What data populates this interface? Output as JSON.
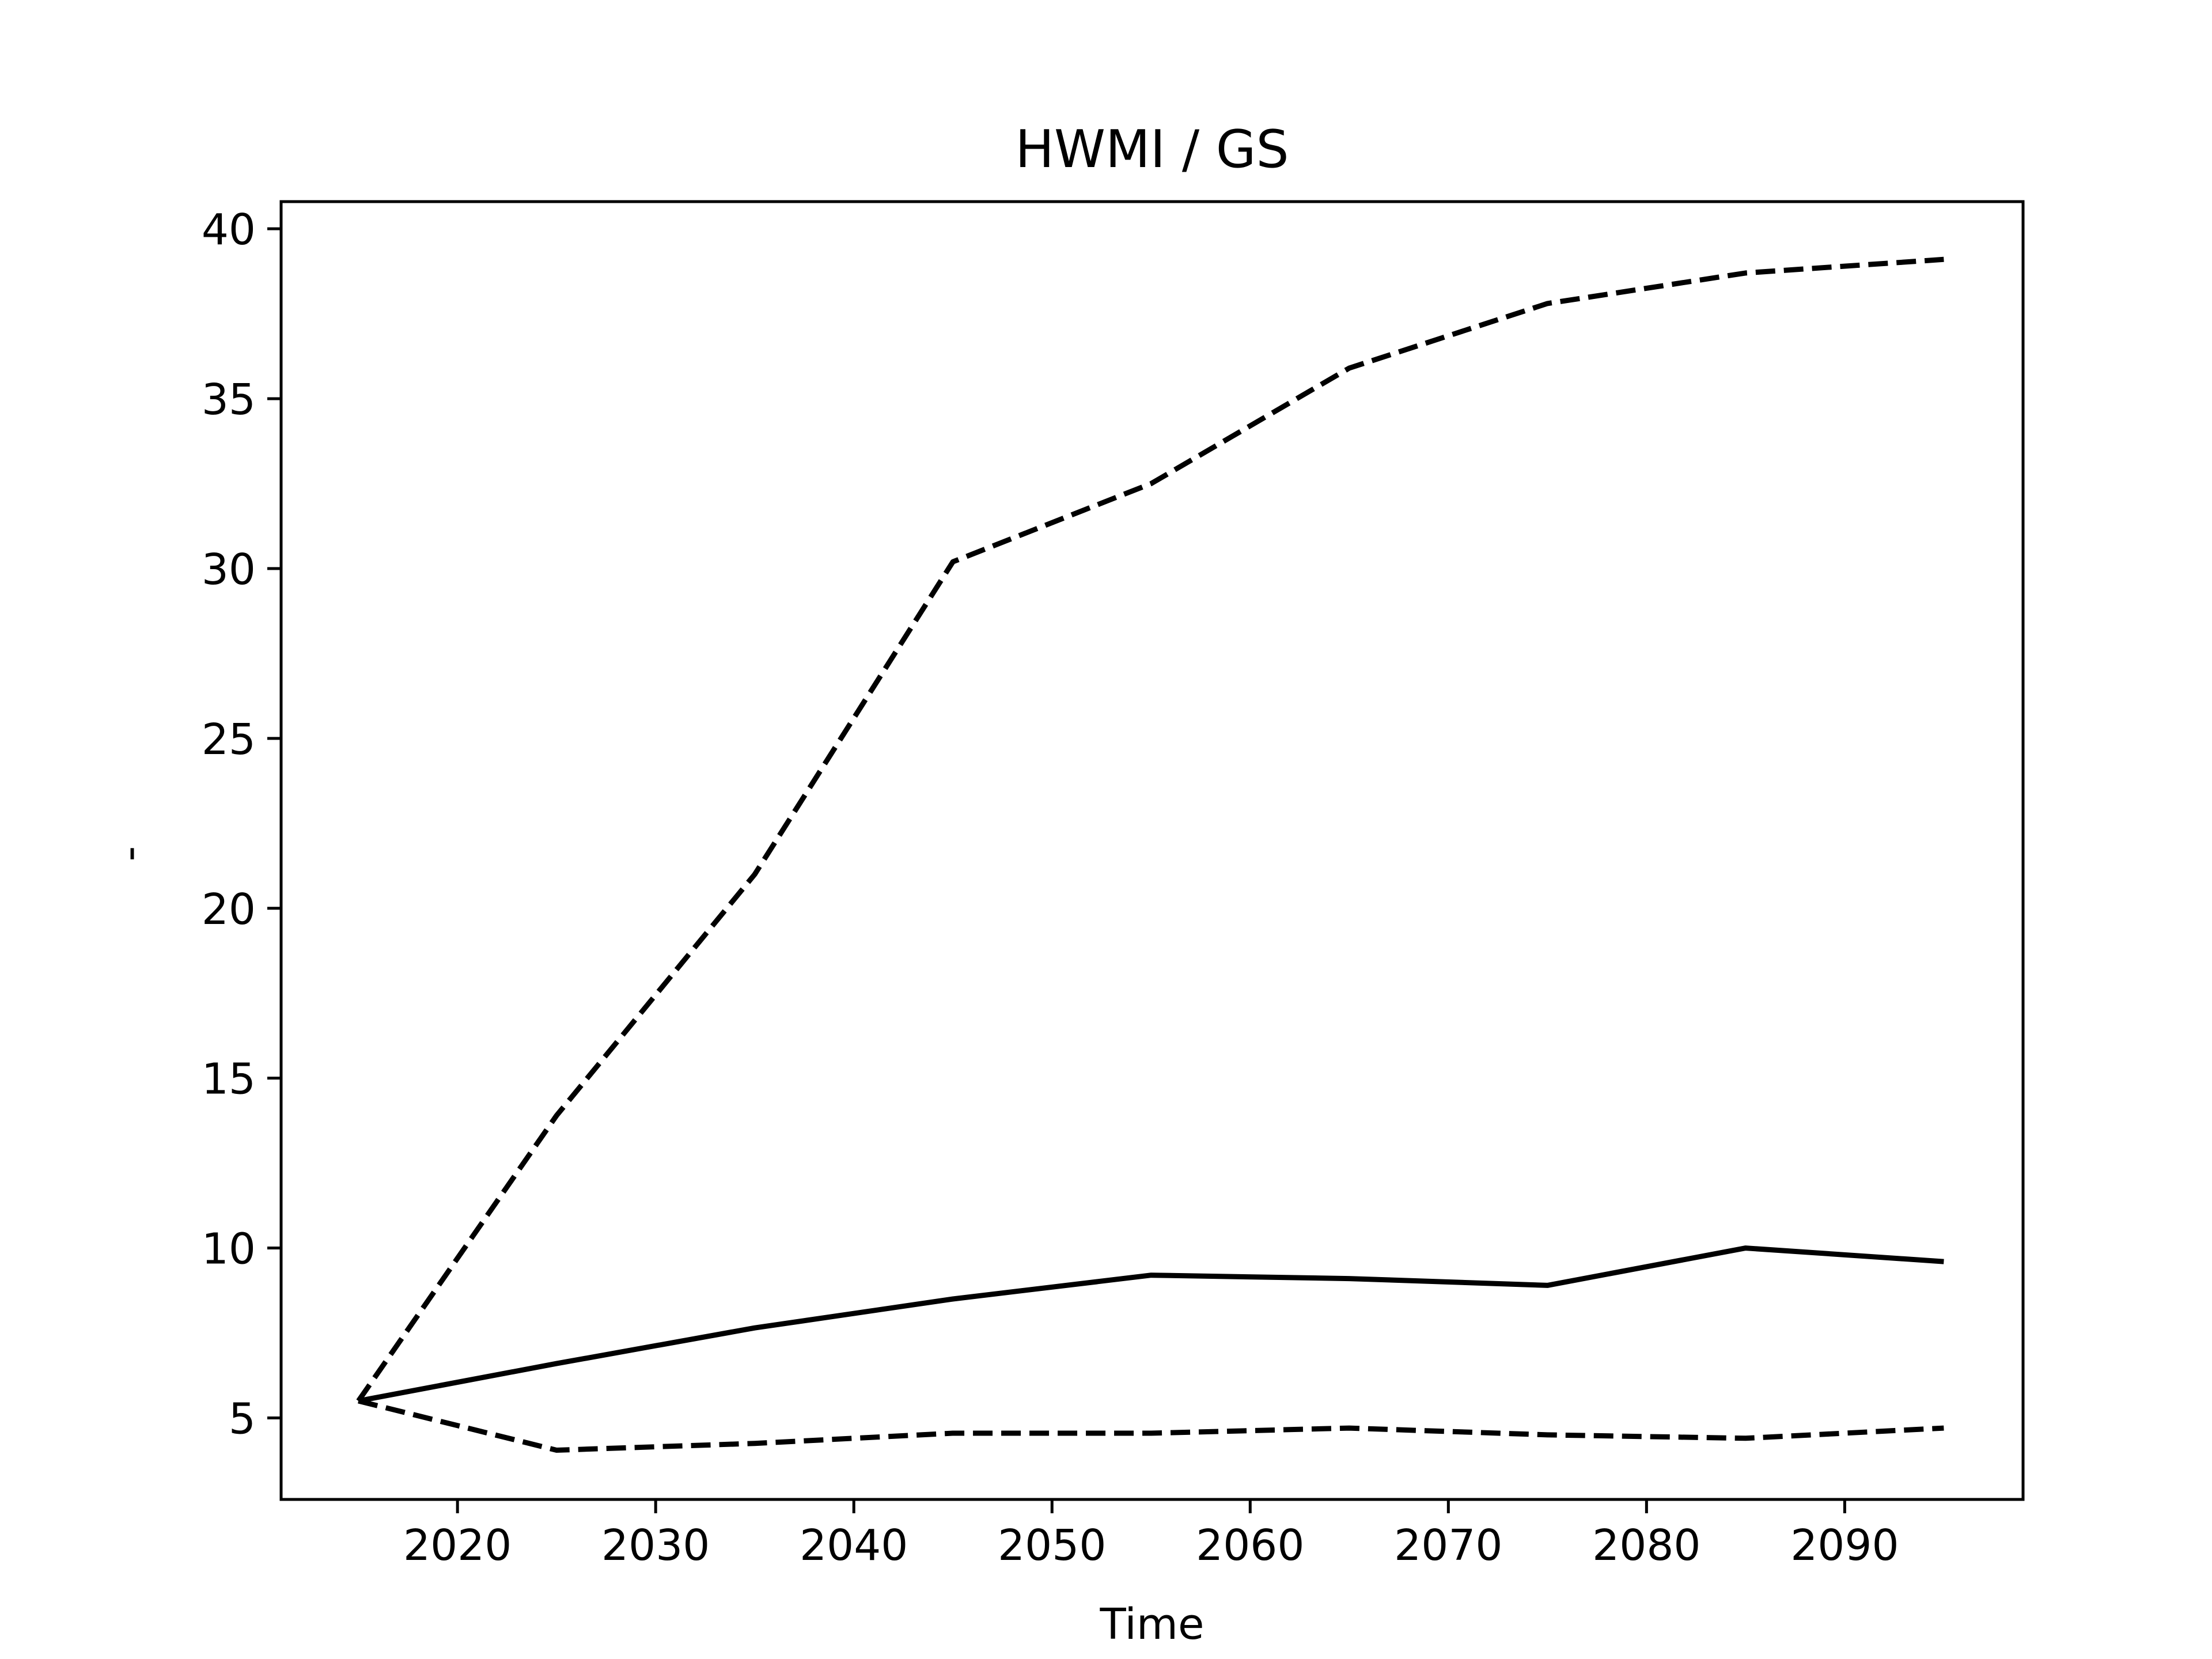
{
  "chart_data": {
    "type": "line",
    "title": "HWMI / GS",
    "xlabel": "Time",
    "ylabel": "-",
    "x": [
      2015,
      2025,
      2035,
      2045,
      2055,
      2065,
      2075,
      2085,
      2095
    ],
    "xlim": [
      2011.1,
      2099.0
    ],
    "ylim": [
      2.6,
      40.8
    ],
    "xticks": [
      2020,
      2030,
      2040,
      2050,
      2060,
      2070,
      2080,
      2090
    ],
    "yticks": [
      5,
      10,
      15,
      20,
      25,
      30,
      35,
      40
    ],
    "grid": false,
    "series": [
      {
        "style": "solid",
        "color": "#000000",
        "values": [
          5.5,
          6.6,
          7.65,
          8.5,
          9.2,
          9.1,
          8.9,
          10.0,
          9.6
        ]
      },
      {
        "style": "dashed",
        "color": "#000000",
        "values": [
          5.5,
          13.9,
          21.0,
          30.2,
          32.5,
          35.9,
          37.8,
          38.7,
          39.1
        ]
      },
      {
        "style": "dashed",
        "color": "#000000",
        "values": [
          5.5,
          4.05,
          4.25,
          4.55,
          4.55,
          4.7,
          4.5,
          4.4,
          4.7
        ]
      }
    ]
  }
}
